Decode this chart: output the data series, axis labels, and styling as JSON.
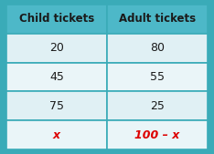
{
  "headers": [
    "Child tickets",
    "Adult tickets"
  ],
  "rows": [
    [
      "20",
      "80"
    ],
    [
      "45",
      "55"
    ],
    [
      "75",
      "25"
    ],
    [
      "x",
      "100 – x"
    ]
  ],
  "header_bg": "#4db8c8",
  "row_bg_light": "#e0f0f4",
  "row_bg_lighter": "#eaf5f8",
  "header_text_color": "#1a1a1a",
  "body_text_color": "#1a1a1a",
  "last_row_text_color": "#dd0000",
  "border_color": "#3aabb8",
  "outer_bg": "#3aabb8",
  "header_fontsize": 8.5,
  "body_fontsize": 9,
  "border_lw": 1.2
}
